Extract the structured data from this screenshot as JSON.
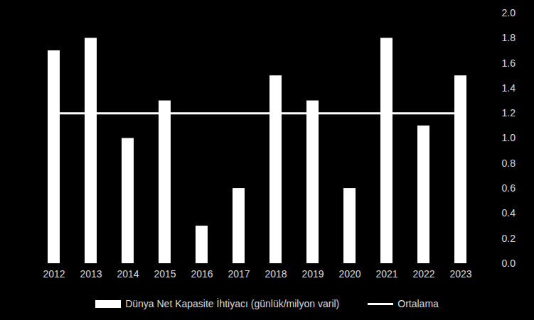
{
  "chart_data": {
    "type": "bar",
    "categories": [
      "2012",
      "2013",
      "2014",
      "2015",
      "2016",
      "2017",
      "2018",
      "2019",
      "2020",
      "2021",
      "2022",
      "2023"
    ],
    "series": [
      {
        "name": "Dünya Net Kapasite İhtiyacı (günlük/milyon varil)",
        "type": "bar",
        "color": "#ffffff",
        "values": [
          1.7,
          1.8,
          1.0,
          1.3,
          0.3,
          0.6,
          1.5,
          1.3,
          0.6,
          1.8,
          1.1,
          1.5
        ]
      },
      {
        "name": "Ortalama",
        "type": "line",
        "color": "#ffffff",
        "values": [
          1.2,
          1.2,
          1.2,
          1.2,
          1.2,
          1.2,
          1.2,
          1.2,
          1.2,
          1.2,
          1.2,
          1.2
        ]
      }
    ],
    "ylim": [
      0,
      2
    ],
    "yticks": [
      {
        "value": 0,
        "label": "0.0"
      },
      0.2,
      0.4,
      0.6,
      0.8,
      {
        "value": 1,
        "label": "1.0"
      },
      1.2,
      1.4,
      1.6,
      1.8,
      {
        "value": 2,
        "label": "2.0"
      }
    ],
    "grid": false,
    "legend": "bottom"
  }
}
